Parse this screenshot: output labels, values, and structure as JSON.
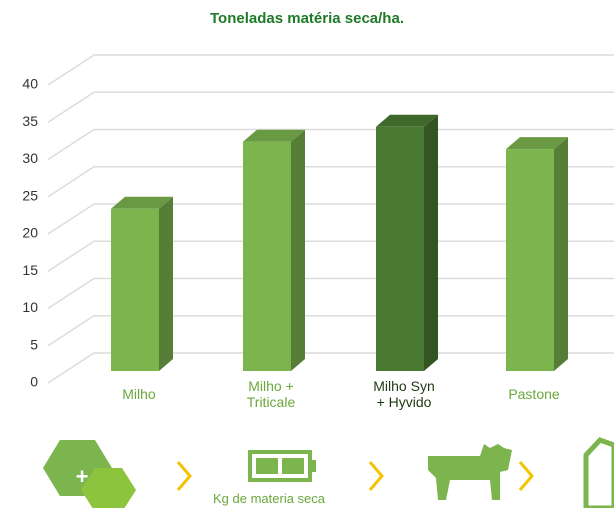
{
  "chart_data": {
    "type": "bar3d",
    "title": "Toneladas matéria seca/ha.",
    "categories": [
      "Milho",
      "Milho +\nTriticale",
      "Milho Syn\n+ Hyvido",
      "Pastone"
    ],
    "values": [
      25,
      34,
      36,
      33
    ],
    "colors": [
      "#7cb44e",
      "#7cb44e",
      "#4a7a32",
      "#7cb44e"
    ],
    "label_colors": [
      "#6aa83c",
      "#6aa83c",
      "#1e3a14",
      "#6aa83c"
    ],
    "ylim": [
      0,
      40
    ],
    "yticks": [
      0,
      5,
      10,
      15,
      20,
      25,
      30,
      35,
      40
    ],
    "grid": true
  },
  "footer": {
    "caption": "Kg de materia seca"
  }
}
